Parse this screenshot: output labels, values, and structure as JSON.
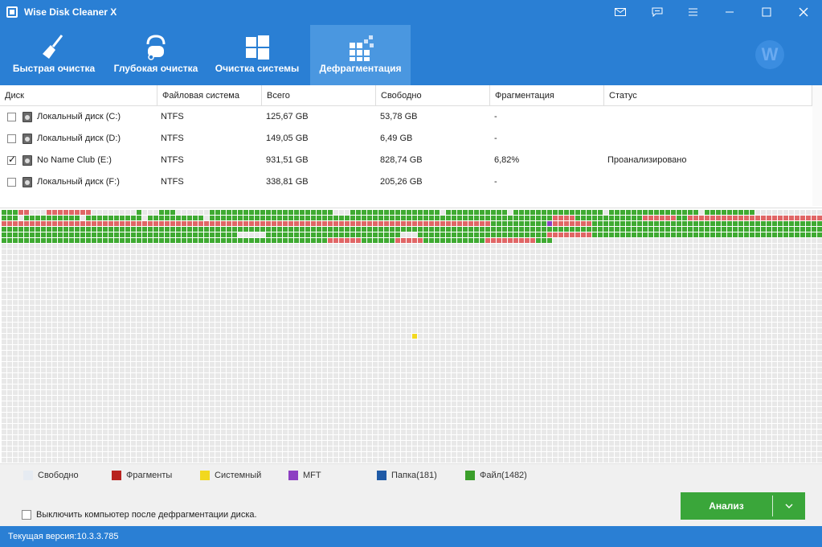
{
  "app": {
    "title": "Wise Disk Cleaner X",
    "logo_letter": "W"
  },
  "titlebar_buttons": [
    {
      "icon": "mail-icon"
    },
    {
      "icon": "feedback-icon"
    },
    {
      "icon": "menu-icon"
    },
    {
      "icon": "minimize-icon"
    },
    {
      "icon": "maximize-icon"
    },
    {
      "icon": "close-icon"
    }
  ],
  "tabs": [
    {
      "label": "Быстрая очистка",
      "icon": "broom-icon",
      "active": false
    },
    {
      "label": "Глубокая очистка",
      "icon": "vacuum-icon",
      "active": false
    },
    {
      "label": "Очистка системы",
      "icon": "windows-icon",
      "active": false
    },
    {
      "label": "Дефрагментация",
      "icon": "defrag-icon",
      "active": true
    }
  ],
  "table": {
    "headers": [
      "Диск",
      "Файловая система",
      "Всего",
      "Свободно",
      "Фрагментация",
      "Статус"
    ],
    "rows": [
      {
        "checked": false,
        "name": "Локальный диск (C:)",
        "fs": "NTFS",
        "total": "125,67 GB",
        "free": "53,78 GB",
        "frag": "-",
        "status": ""
      },
      {
        "checked": false,
        "name": "Локальный диск (D:)",
        "fs": "NTFS",
        "total": "149,05 GB",
        "free": "6,49 GB",
        "frag": "-",
        "status": ""
      },
      {
        "checked": true,
        "name": "No Name Club (E:)",
        "fs": "NTFS",
        "total": "931,51 GB",
        "free": "828,74 GB",
        "frag": "6,82%",
        "status": "Проанализировано"
      },
      {
        "checked": false,
        "name": "Локальный диск (F:)",
        "fs": "NTFS",
        "total": "338,81 GB",
        "free": "205,26 GB",
        "frag": "-",
        "status": ""
      }
    ]
  },
  "legend": [
    {
      "label": "Свободно",
      "color": "#e6ebf2"
    },
    {
      "label": "Фрагменты",
      "color": "#b8231f"
    },
    {
      "label": "Системный",
      "color": "#f2d81f"
    },
    {
      "label": "MFT",
      "color": "#8d3fc2"
    },
    {
      "label": "Папка(181)",
      "color": "#1f5aa6"
    },
    {
      "label": "Файл(1482)",
      "color": "#3a9e2a"
    }
  ],
  "colors": {
    "header_blue": "#2a7fd4",
    "active_tab": "#4a97e0",
    "used_green": "#3faa32",
    "fragment_red": "#e06666",
    "free_gray": "#e8e8e8",
    "analyze_green": "#3aa63a"
  },
  "option": {
    "checked": false,
    "label": "Выключить компьютер после дефрагментации диска."
  },
  "analyze": {
    "label": "Анализ",
    "dropdown_icon": "chevron-down-icon"
  },
  "status": {
    "version_label": "Текущая версия:",
    "version": "10.3.3.785"
  }
}
